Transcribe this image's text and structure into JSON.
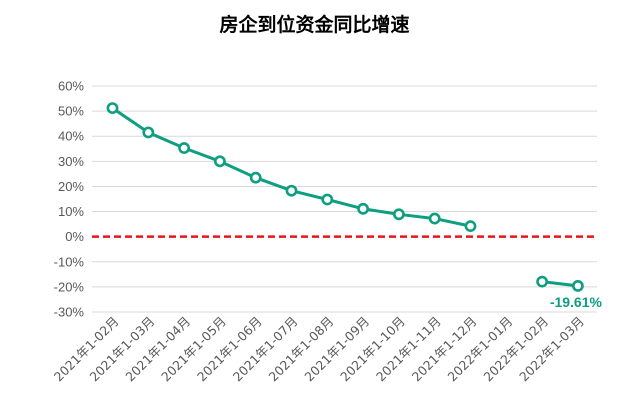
{
  "chart_data": {
    "type": "line",
    "title": "房企到位资金同比增速",
    "xlabel": "",
    "ylabel": "",
    "ylim": [
      -30,
      60
    ],
    "y_ticks": [
      60,
      50,
      40,
      30,
      20,
      10,
      0,
      -10,
      -20,
      -30
    ],
    "y_tick_labels": [
      "60%",
      "50%",
      "40%",
      "30%",
      "20%",
      "10%",
      "0%",
      "-10%",
      "-20%",
      "-30%"
    ],
    "categories": [
      "2021年1-02月",
      "2021年1-03月",
      "2021年1-04月",
      "2021年1-05月",
      "2021年1-06月",
      "2021年1-07月",
      "2021年1-08月",
      "2021年1-09月",
      "2021年1-10月",
      "2021年1-11月",
      "2021年1-12月",
      "2022年1-01月",
      "2022年1-02月",
      "2022年1-03月"
    ],
    "series": [
      {
        "values": [
          51.2,
          41.5,
          35.3,
          30.0,
          23.5,
          18.3,
          14.8,
          11.1,
          8.9,
          7.2,
          4.2,
          null,
          -17.9,
          -19.61
        ]
      }
    ],
    "data_labels": [
      {
        "index": 13,
        "text": "-19.61%"
      }
    ],
    "grid": true,
    "legend": "none",
    "colors": {
      "line": "#0e9e80",
      "zero_line": "#e8141b",
      "grid": "#d9d9d9",
      "axis_text": "#595959"
    }
  }
}
